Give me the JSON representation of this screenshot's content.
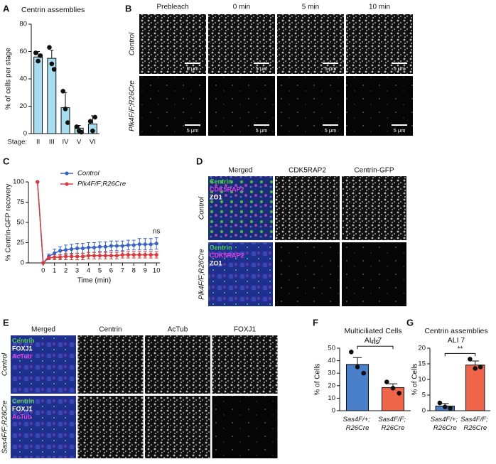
{
  "panels": {
    "letters": [
      "A",
      "B",
      "C",
      "D",
      "E",
      "F",
      "G"
    ],
    "B": {
      "columns": [
        "Prebleach",
        "0 min",
        "5 min",
        "10 min"
      ],
      "rows": [
        "Control",
        "Plk4F/F;R26Cre"
      ],
      "scale_bar": "5 μm"
    },
    "D": {
      "columns": [
        "Merged",
        "CDK5RAP2",
        "Centrin-GFP"
      ],
      "rows": [
        "Control",
        "Plk4F/F;R26Cre"
      ],
      "stains": [
        "Centrin",
        "CDK5RAP2",
        "ZO1"
      ]
    },
    "E": {
      "columns": [
        "Merged",
        "Centrin",
        "AcTub",
        "FOXJ1"
      ],
      "rows": [
        "Control",
        "Sas4F/F;R26Cre"
      ],
      "stains": [
        "Centrin",
        "FOXJ1",
        "AcTub"
      ]
    }
  },
  "chart_data": [
    {
      "type": "bar",
      "title": "Centrin assemblies",
      "ylabel": "% of cells per stage",
      "xlabel": "Stage:",
      "categories": [
        "II",
        "III",
        "IV",
        "V",
        "VI"
      ],
      "values": [
        56,
        55,
        19,
        4,
        7
      ],
      "errors": [
        4,
        6,
        11,
        2,
        6
      ],
      "points": [
        [
          59,
          53,
          57
        ],
        [
          63,
          51,
          47
        ],
        [
          31,
          18,
          8
        ],
        [
          5,
          2,
          1
        ],
        [
          9,
          2,
          12
        ]
      ],
      "color": "#a6def0",
      "ylim": [
        0,
        80
      ],
      "yticks": [
        0,
        20,
        40,
        60,
        80
      ]
    },
    {
      "type": "line",
      "xlabel": "Time (min)",
      "ylabel": "% Centrin-GFP recovery",
      "x": [
        -0.5,
        0,
        0.5,
        1,
        1.5,
        2,
        2.5,
        3,
        3.5,
        4,
        4.5,
        5,
        5.5,
        6,
        6.5,
        7,
        7.5,
        8,
        8.5,
        9,
        9.5,
        10
      ],
      "series": [
        {
          "name": "Control",
          "color": "#3a63c8",
          "values": [
            100,
            0,
            8,
            12,
            15,
            16,
            17,
            18,
            18,
            19,
            19,
            20,
            20,
            21,
            21,
            21,
            22,
            22,
            23,
            23,
            23,
            24
          ],
          "errors": [
            0,
            0,
            3,
            5,
            5,
            6,
            6,
            6,
            6,
            6,
            6,
            6,
            6,
            6,
            6,
            6,
            6,
            6,
            7,
            7,
            7,
            7
          ]
        },
        {
          "name": "Plk4F/F;R26Cre",
          "color": "#d93b3b",
          "values": [
            100,
            0,
            6,
            7,
            7,
            8,
            8,
            8,
            8,
            9,
            9,
            9,
            9,
            9,
            9,
            10,
            10,
            10,
            10,
            10,
            10,
            10
          ],
          "errors": [
            0,
            0,
            2,
            3,
            3,
            4,
            4,
            4,
            4,
            4,
            4,
            4,
            4,
            4,
            4,
            4,
            4,
            4,
            4,
            4,
            4,
            4
          ]
        }
      ],
      "xlim": [
        -1.3,
        10.3
      ],
      "xticks": [
        0,
        1,
        2,
        3,
        4,
        5,
        6,
        7,
        8,
        9,
        10
      ],
      "ylim": [
        0,
        100
      ],
      "yticks": [
        0,
        25,
        50,
        75,
        100
      ],
      "annotation": "ns",
      "legend": "top-right"
    },
    {
      "type": "bar",
      "title": "Multiciliated Cells",
      "subtitle": "ALI 7",
      "ylabel": "% of Cells",
      "categories": [
        "Sas4F/+; R26Cre",
        "Sas4F/F; R26Cre"
      ],
      "values": [
        37,
        18.5
      ],
      "errors": [
        5.5,
        3
      ],
      "points": [
        [
          47,
          35,
          30
        ],
        [
          23,
          18,
          14
        ]
      ],
      "colors": [
        "#4a7fc9",
        "#f0654a"
      ],
      "ylim": [
        0,
        50
      ],
      "yticks": [
        0,
        10,
        20,
        30,
        40,
        50
      ],
      "annotation": "ns"
    },
    {
      "type": "bar",
      "title": "Centrin assemblies",
      "subtitle": "ALI 7",
      "ylabel": "% of Cells",
      "categories": [
        "Sas4F/+; R26Cre",
        "Sas4F/F; R26Cre"
      ],
      "values": [
        1.5,
        14.6
      ],
      "errors": [
        0.8,
        1.3
      ],
      "points": [
        [
          2.5,
          1.2,
          0.8
        ],
        [
          16.5,
          13.5,
          14
        ]
      ],
      "colors": [
        "#4a7fc9",
        "#f0654a"
      ],
      "ylim": [
        0,
        20
      ],
      "yticks": [
        0,
        5,
        10,
        15,
        20
      ],
      "annotation": "**"
    }
  ]
}
